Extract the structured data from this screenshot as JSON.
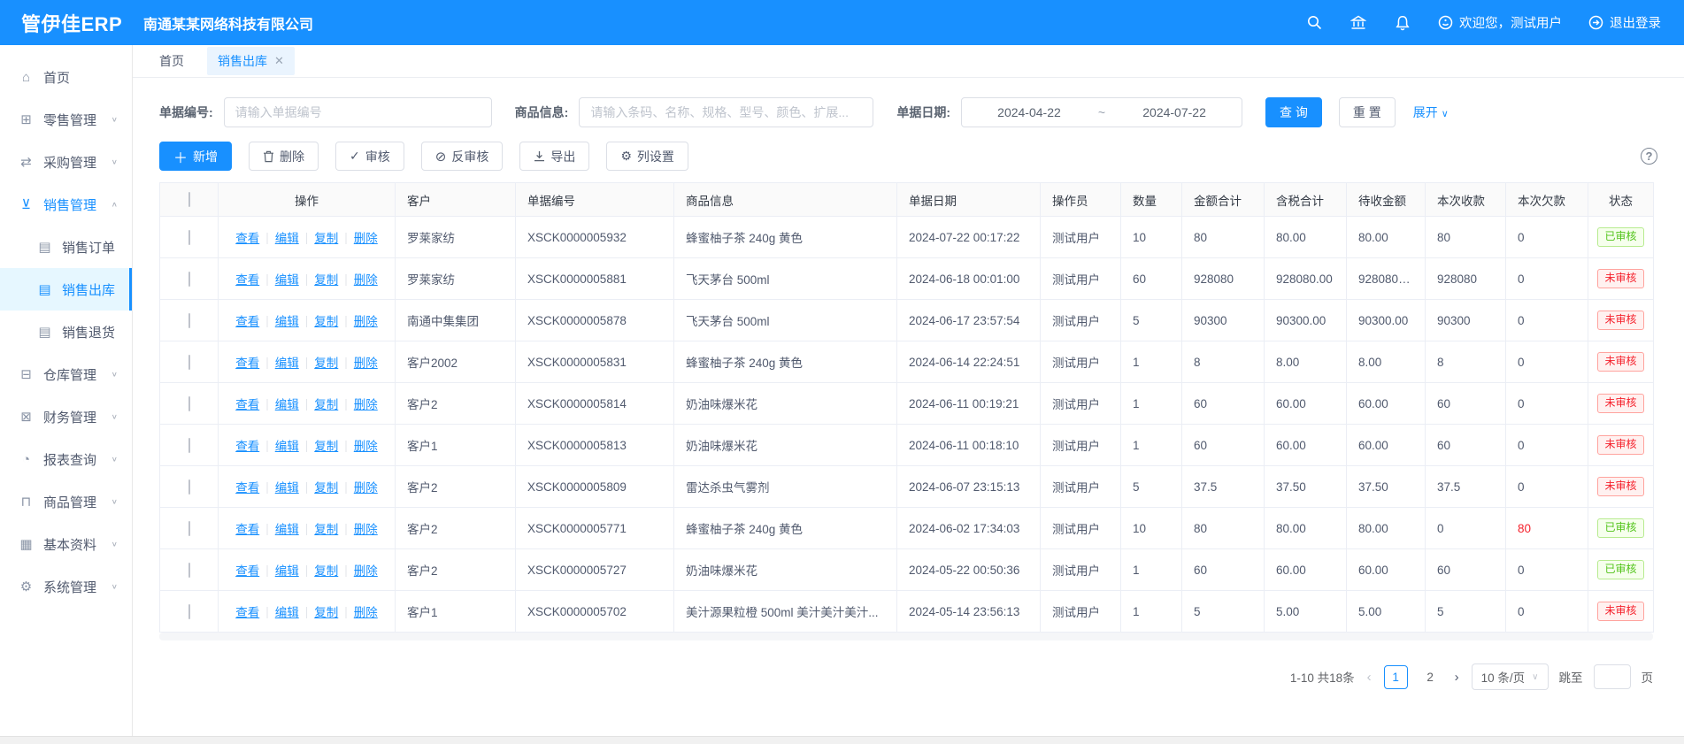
{
  "topbar": {
    "logo": "管伊佳ERP",
    "company": "南通某某网络科技有限公司",
    "welcome": "欢迎您，测试用户",
    "logout": "退出登录"
  },
  "tabs": {
    "home": "首页",
    "current": "销售出库"
  },
  "sidebar": {
    "items": [
      {
        "key": "home",
        "label": "首页",
        "icon": "home-icon",
        "glyph": "⌂"
      },
      {
        "key": "retail",
        "label": "零售管理",
        "icon": "gift-icon",
        "glyph": "⊞",
        "chevron": "down"
      },
      {
        "key": "purchase",
        "label": "采购管理",
        "icon": "sync-icon",
        "glyph": "⇄",
        "chevron": "down"
      },
      {
        "key": "sales",
        "label": "销售管理",
        "icon": "cart-icon",
        "glyph": "⊻",
        "chevron": "up",
        "parent_active": true
      },
      {
        "key": "sales-order",
        "label": "销售订单",
        "icon": "document-icon",
        "glyph": "▤",
        "child": true
      },
      {
        "key": "sales-outbound",
        "label": "销售出库",
        "icon": "document-icon",
        "glyph": "▤",
        "child": true,
        "active": true
      },
      {
        "key": "sales-return",
        "label": "销售退货",
        "icon": "document-icon",
        "glyph": "▤",
        "child": true
      },
      {
        "key": "warehouse",
        "label": "仓库管理",
        "icon": "warehouse-icon",
        "glyph": "⊟",
        "chevron": "down"
      },
      {
        "key": "finance",
        "label": "财务管理",
        "icon": "finance-icon",
        "glyph": "⊠",
        "chevron": "down"
      },
      {
        "key": "reports",
        "label": "报表查询",
        "icon": "pie-chart-icon",
        "glyph": "◔",
        "chevron": "down"
      },
      {
        "key": "goods",
        "label": "商品管理",
        "icon": "bag-icon",
        "glyph": "⊓",
        "chevron": "down"
      },
      {
        "key": "basic-data",
        "label": "基本资料",
        "icon": "grid-icon",
        "glyph": "▦",
        "chevron": "down"
      },
      {
        "key": "system",
        "label": "系统管理",
        "icon": "gear-icon",
        "glyph": "⚙",
        "chevron": "down"
      }
    ]
  },
  "filters": {
    "bill_no_label": "单据编号:",
    "bill_no_placeholder": "请输入单据编号",
    "product_label": "商品信息:",
    "product_placeholder": "请输入条码、名称、规格、型号、颜色、扩展...",
    "date_label": "单据日期:",
    "date_from": "2024-04-22",
    "date_separator": "~",
    "date_to": "2024-07-22",
    "search_label": "查 询",
    "reset_label": "重 置",
    "expand_label": "展开"
  },
  "toolbar": {
    "add": "新增",
    "delete": "删除",
    "audit": "审核",
    "unaudit": "反审核",
    "export": "导出",
    "columns": "列设置"
  },
  "table": {
    "headers": [
      "操作",
      "客户",
      "单据编号",
      "商品信息",
      "单据日期",
      "操作员",
      "数量",
      "金额合计",
      "含税合计",
      "待收金额",
      "本次收款",
      "本次欠款",
      "状态"
    ],
    "action_labels": {
      "view": "查看",
      "edit": "编辑",
      "copy": "复制",
      "delete": "删除"
    },
    "rows": [
      {
        "customer": "罗莱家纺",
        "bill_no": "XSCK0000005932",
        "product": "蜂蜜柚子茶 240g 黄色",
        "date": "2024-07-22 00:17:22",
        "operator": "测试用户",
        "qty": "10",
        "amount": "80",
        "tax_total": "80.00",
        "receivable": "80.00",
        "received": "80",
        "owed": "0",
        "owed_red": false,
        "status": "已审核",
        "status_type": "approved"
      },
      {
        "customer": "罗莱家纺",
        "bill_no": "XSCK0000005881",
        "product": "飞天茅台 500ml",
        "date": "2024-06-18 00:01:00",
        "operator": "测试用户",
        "qty": "60",
        "amount": "928080",
        "tax_total": "928080.00",
        "receivable": "928080.00",
        "received": "928080",
        "owed": "0",
        "owed_red": false,
        "status": "未审核",
        "status_type": "unapproved"
      },
      {
        "customer": "南通中集集团",
        "bill_no": "XSCK0000005878",
        "product": "飞天茅台 500ml",
        "date": "2024-06-17 23:57:54",
        "operator": "测试用户",
        "qty": "5",
        "amount": "90300",
        "tax_total": "90300.00",
        "receivable": "90300.00",
        "received": "90300",
        "owed": "0",
        "owed_red": false,
        "status": "未审核",
        "status_type": "unapproved"
      },
      {
        "customer": "客户2002",
        "bill_no": "XSCK0000005831",
        "product": "蜂蜜柚子茶 240g 黄色",
        "date": "2024-06-14 22:24:51",
        "operator": "测试用户",
        "qty": "1",
        "amount": "8",
        "tax_total": "8.00",
        "receivable": "8.00",
        "received": "8",
        "owed": "0",
        "owed_red": false,
        "status": "未审核",
        "status_type": "unapproved"
      },
      {
        "customer": "客户2",
        "bill_no": "XSCK0000005814",
        "product": "奶油味爆米花",
        "date": "2024-06-11 00:19:21",
        "operator": "测试用户",
        "qty": "1",
        "amount": "60",
        "tax_total": "60.00",
        "receivable": "60.00",
        "received": "60",
        "owed": "0",
        "owed_red": false,
        "status": "未审核",
        "status_type": "unapproved"
      },
      {
        "customer": "客户1",
        "bill_no": "XSCK0000005813",
        "product": "奶油味爆米花",
        "date": "2024-06-11 00:18:10",
        "operator": "测试用户",
        "qty": "1",
        "amount": "60",
        "tax_total": "60.00",
        "receivable": "60.00",
        "received": "60",
        "owed": "0",
        "owed_red": false,
        "status": "未审核",
        "status_type": "unapproved"
      },
      {
        "customer": "客户2",
        "bill_no": "XSCK0000005809",
        "product": "雷达杀虫气雾剂",
        "date": "2024-06-07 23:15:13",
        "operator": "测试用户",
        "qty": "5",
        "amount": "37.5",
        "tax_total": "37.50",
        "receivable": "37.50",
        "received": "37.5",
        "owed": "0",
        "owed_red": false,
        "status": "未审核",
        "status_type": "unapproved"
      },
      {
        "customer": "客户2",
        "bill_no": "XSCK0000005771",
        "product": "蜂蜜柚子茶 240g 黄色",
        "date": "2024-06-02 17:34:03",
        "operator": "测试用户",
        "qty": "10",
        "amount": "80",
        "tax_total": "80.00",
        "receivable": "80.00",
        "received": "0",
        "owed": "80",
        "owed_red": true,
        "status": "已审核",
        "status_type": "approved"
      },
      {
        "customer": "客户2",
        "bill_no": "XSCK0000005727",
        "product": "奶油味爆米花",
        "date": "2024-05-22 00:50:36",
        "operator": "测试用户",
        "qty": "1",
        "amount": "60",
        "tax_total": "60.00",
        "receivable": "60.00",
        "received": "60",
        "owed": "0",
        "owed_red": false,
        "status": "已审核",
        "status_type": "approved"
      },
      {
        "customer": "客户1",
        "bill_no": "XSCK0000005702",
        "product": "美汁源果粒橙 500ml 美汁美汁美汁...",
        "date": "2024-05-14 23:56:13",
        "operator": "测试用户",
        "qty": "1",
        "amount": "5",
        "tax_total": "5.00",
        "receivable": "5.00",
        "received": "5",
        "owed": "0",
        "owed_red": false,
        "status": "未审核",
        "status_type": "unapproved"
      }
    ]
  },
  "pagination": {
    "total": "1-10 共18条",
    "page1": "1",
    "page2": "2",
    "page_size": "10 条/页",
    "jump_label": "跳至",
    "page_suffix": "页"
  },
  "colors": {
    "primary": "#1890ff",
    "approved_green": "#52c41a",
    "unapproved_red": "#f5222d",
    "sidebar_active_bg": "#e6f7ff",
    "header_bg": "#fafafa"
  }
}
